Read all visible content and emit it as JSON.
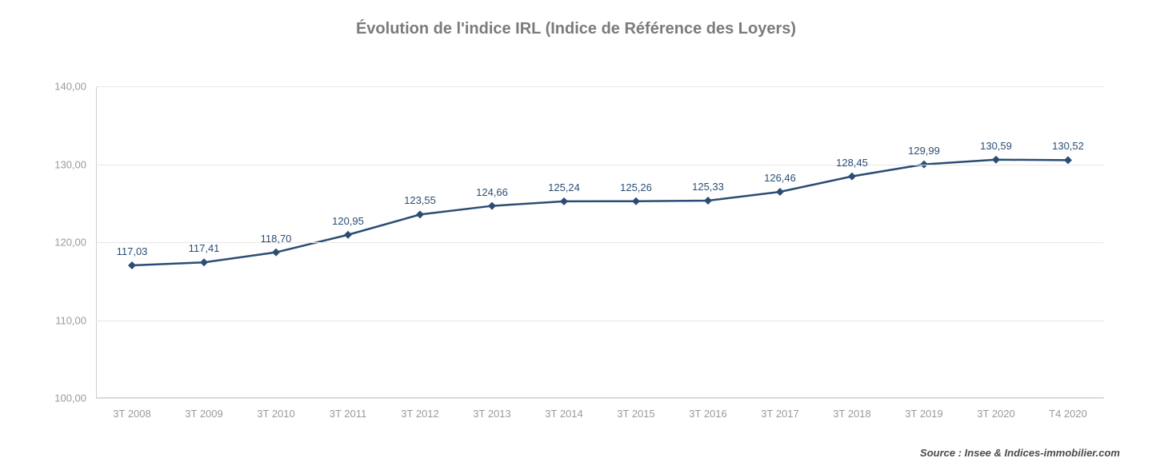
{
  "chart": {
    "type": "line",
    "title": "Évolution de l'indice IRL (Indice de Référence des Loyers)",
    "title_fontsize": 20,
    "title_color": "#7b7b7b",
    "source": "Source : Insee & Indices-immobilier.com",
    "source_fontsize": 13,
    "source_color": "#4a4a4a",
    "background_color": "#ffffff",
    "line_color": "#2b4d73",
    "line_width": 2.5,
    "marker_shape": "diamond",
    "marker_size": 10,
    "marker_color": "#2b4d73",
    "data_label_color": "#2b4d73",
    "data_label_fontsize": 13,
    "axis_label_color": "#9a9a9a",
    "axis_label_fontsize": 13,
    "grid_color": "#e6e6e6",
    "axis_line_color": "#d0d0d0",
    "ylim": [
      100,
      140
    ],
    "ytick_step": 10,
    "yticks": [
      "100,00",
      "110,00",
      "120,00",
      "130,00",
      "140,00"
    ],
    "categories": [
      "3T 2008",
      "3T 2009",
      "3T 2010",
      "3T 2011",
      "3T 2012",
      "3T 2013",
      "3T 2014",
      "3T 2015",
      "3T 2016",
      "3T 2017",
      "3T 2018",
      "3T 2019",
      "3T 2020",
      "T4 2020"
    ],
    "values": [
      117.03,
      117.41,
      118.7,
      120.95,
      123.55,
      124.66,
      125.24,
      125.26,
      125.33,
      126.46,
      128.45,
      129.99,
      130.59,
      130.52
    ],
    "value_labels": [
      "117,03",
      "117,41",
      "118,70",
      "120,95",
      "123,55",
      "124,66",
      "125,24",
      "125,26",
      "125,33",
      "126,46",
      "128,45",
      "129,99",
      "130,59",
      "130,52"
    ]
  }
}
